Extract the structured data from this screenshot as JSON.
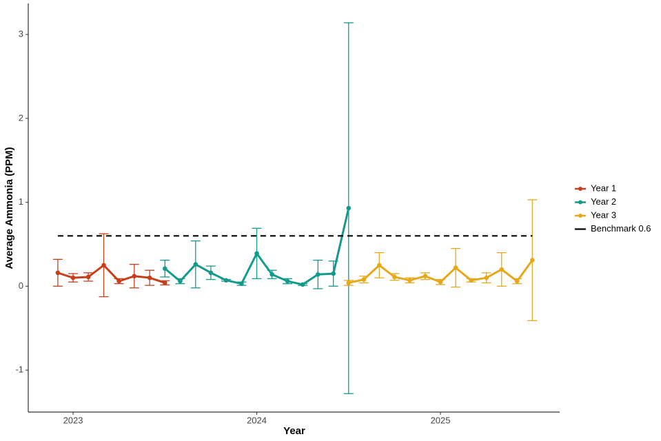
{
  "chart_data": {
    "type": "line",
    "x_label": "Year",
    "y_label": "Average Ammonia (PPM)",
    "xlim": [
      2022.756,
      2025.649
    ],
    "xticks": [
      2023,
      2024,
      2025
    ],
    "ylim": [
      -1.5,
      3.37
    ],
    "yticks": [
      -1,
      0,
      1,
      2,
      3
    ],
    "grid": false,
    "legend": "right",
    "series": [
      {
        "name": "Year 1",
        "color": "#c7401d",
        "x": [
          2022.917,
          2023.0,
          2023.083,
          2023.167,
          2023.25,
          2023.333,
          2023.417,
          2023.5
        ],
        "values": [
          0.16,
          0.1,
          0.11,
          0.25,
          0.06,
          0.12,
          0.1,
          0.04
        ],
        "errors": [
          0.16,
          0.05,
          0.05,
          0.375,
          0.03,
          0.14,
          0.09,
          0.025
        ]
      },
      {
        "name": "Year 2",
        "color": "#139a8d",
        "x": [
          2023.5,
          2023.583,
          2023.667,
          2023.75,
          2023.833,
          2023.917,
          2024.0,
          2024.083,
          2024.167,
          2024.25,
          2024.333,
          2024.417,
          2024.5
        ],
        "values": [
          0.21,
          0.06,
          0.26,
          0.16,
          0.07,
          0.03,
          0.39,
          0.14,
          0.06,
          0.02,
          0.14,
          0.15,
          0.93
        ],
        "errors": [
          0.1,
          0.03,
          0.28,
          0.08,
          0.01,
          0.02,
          0.3,
          0.05,
          0.03,
          0.01,
          0.17,
          0.15,
          2.21
        ]
      },
      {
        "name": "Year 3",
        "color": "#e5a81a",
        "x": [
          2024.5,
          2024.583,
          2024.667,
          2024.75,
          2024.833,
          2024.917,
          2025.0,
          2025.083,
          2025.167,
          2025.25,
          2025.333,
          2025.417,
          2025.5
        ],
        "values": [
          0.04,
          0.08,
          0.25,
          0.11,
          0.07,
          0.12,
          0.05,
          0.22,
          0.07,
          0.1,
          0.2,
          0.06,
          0.31
        ],
        "errors": [
          0.03,
          0.04,
          0.15,
          0.04,
          0.03,
          0.04,
          0.03,
          0.23,
          0.02,
          0.06,
          0.2,
          0.03,
          0.72
        ]
      },
      {
        "name": "Benchmark 0.6",
        "color": "#000000",
        "dashed": true,
        "x": [
          2022.917,
          2025.5
        ],
        "values": [
          0.6,
          0.6
        ]
      }
    ]
  }
}
